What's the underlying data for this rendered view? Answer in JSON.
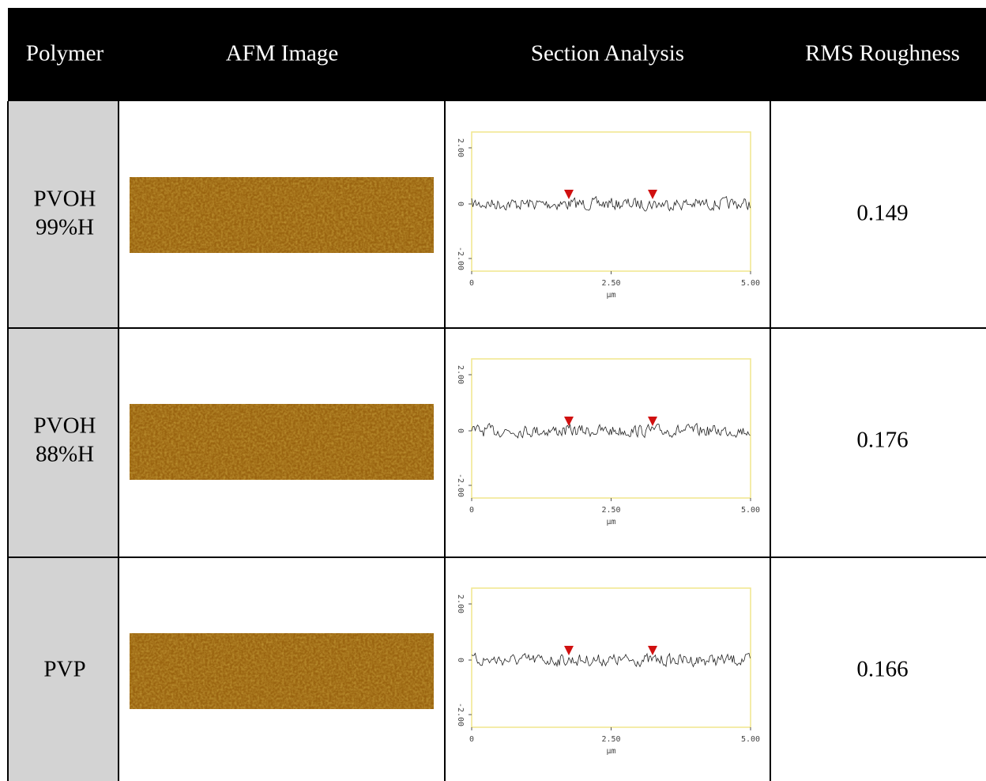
{
  "table": {
    "header": [
      "Polymer",
      "AFM Image",
      "Section Analysis",
      "RMS Roughness"
    ],
    "rows": [
      {
        "polymer": [
          "PVOH",
          "99%H"
        ],
        "rms": 0.149
      },
      {
        "polymer": [
          "PVOH",
          "88%H"
        ],
        "rms": 0.176
      },
      {
        "polymer": [
          "PVP"
        ],
        "rms": 0.166
      }
    ]
  },
  "section_axis": {
    "yticks": [
      "2.00",
      "0",
      "-2.00"
    ],
    "xticks": [
      "0",
      "2.50",
      "5.00"
    ],
    "xunit": "µm"
  }
}
